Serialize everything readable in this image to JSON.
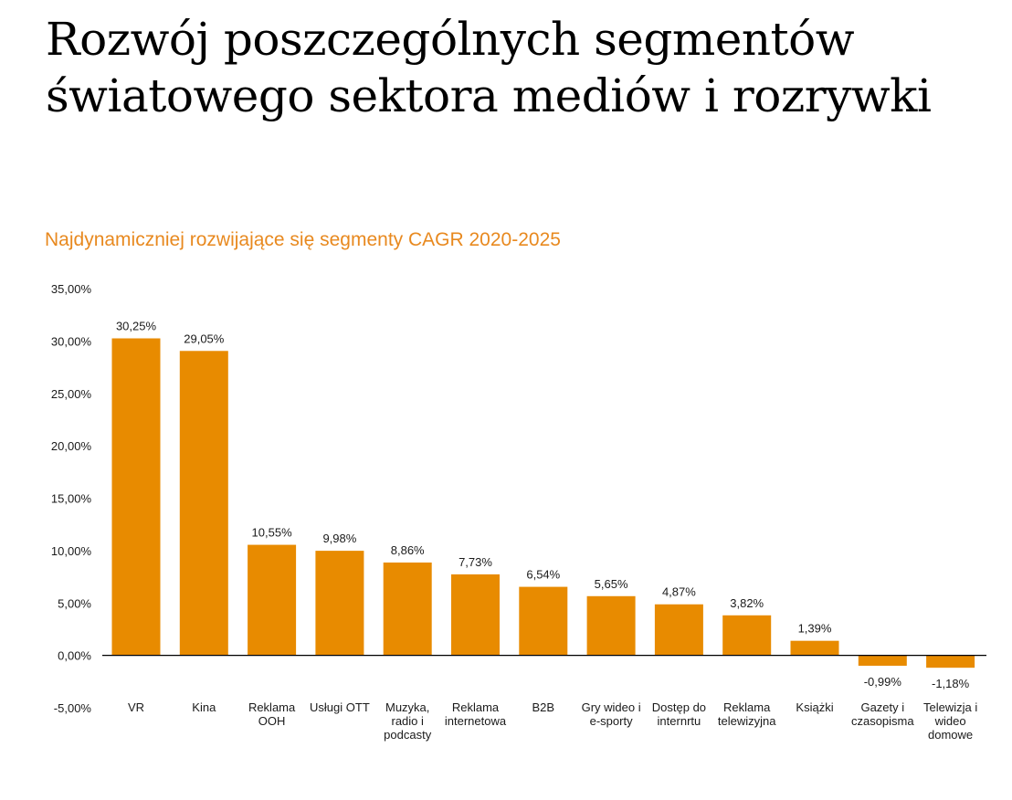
{
  "page": {
    "title_line1": "Rozwój poszczególnych segmentów",
    "title_line2": "światowego sektora mediów i rozrywki"
  },
  "colors": {
    "bar": "#E88B00",
    "subtitle": "#E8891F",
    "axis": "#000000",
    "text": "#1a1a1a"
  },
  "chart_data": {
    "type": "bar",
    "title": "Najdynamiczniej rozwijające się segmenty CAGR 2020-2025",
    "xlabel": "",
    "ylabel": "",
    "ylim": [
      -5,
      35
    ],
    "yticks": [
      35,
      30,
      25,
      20,
      15,
      10,
      5,
      0,
      -5
    ],
    "ytick_labels": [
      "35,00%",
      "30,00%",
      "25,00%",
      "20,00%",
      "15,00%",
      "10,00%",
      "5,00%",
      "0,00%",
      "-5,00%"
    ],
    "grid": false,
    "legend": "none",
    "categories": [
      [
        "VR"
      ],
      [
        "Kina"
      ],
      [
        "Reklama",
        "OOH"
      ],
      [
        "Usługi OTT"
      ],
      [
        "Muzyka,",
        "radio i",
        "podcasty"
      ],
      [
        "Reklama",
        "internetowa"
      ],
      [
        "B2B"
      ],
      [
        "Gry wideo i",
        "e-sporty"
      ],
      [
        "Dostęp do",
        "internrtu"
      ],
      [
        "Reklama",
        "telewizyjna"
      ],
      [
        "Książki"
      ],
      [
        "Gazety i",
        "czasopisma"
      ],
      [
        "Telewizja i",
        "wideo",
        "domowe"
      ]
    ],
    "values": [
      30.25,
      29.05,
      10.55,
      9.98,
      8.86,
      7.73,
      6.54,
      5.65,
      4.87,
      3.82,
      1.39,
      -0.99,
      -1.18
    ],
    "data_labels": [
      "30,25%",
      "29,05%",
      "10,55%",
      "9,98%",
      "8,86%",
      "7,73%",
      "6,54%",
      "5,65%",
      "4,87%",
      "3,82%",
      "1,39%",
      "-0,99%",
      "-1,18%"
    ]
  }
}
